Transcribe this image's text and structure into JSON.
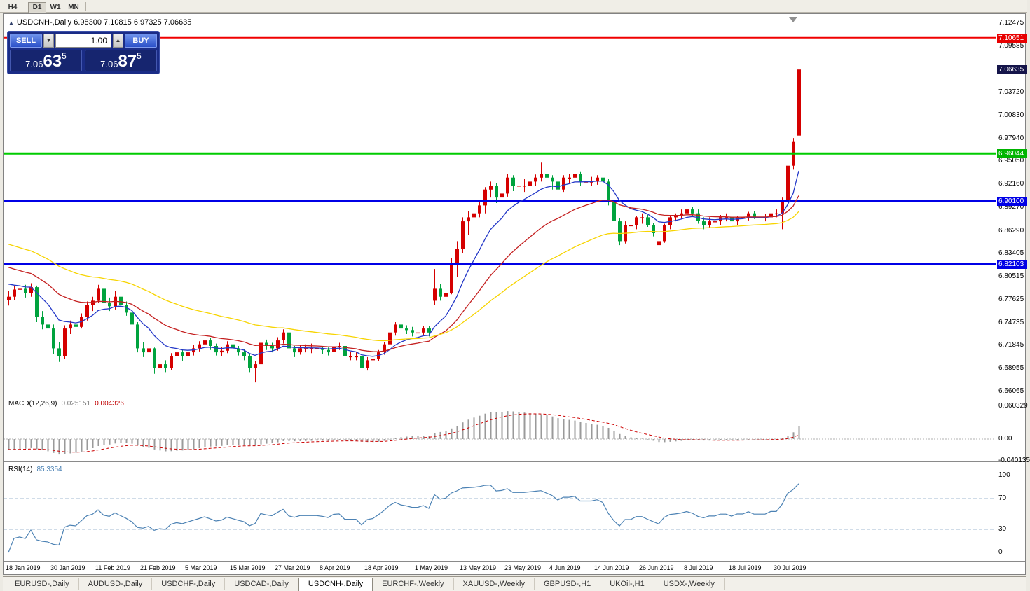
{
  "toolbar": {
    "timeframes": [
      "H4",
      "D1",
      "W1",
      "MN"
    ],
    "active": "D1"
  },
  "chart_header": {
    "collapse_icon": "▲",
    "title": "USDCNH-,Daily 6.98300 7.10815 6.97325 7.06635"
  },
  "one_click_trading": {
    "sell_label": "SELL",
    "buy_label": "BUY",
    "volume": "1.00",
    "spinner_down": "▼",
    "spinner_up": "▲",
    "sell_price": {
      "prefix": "7.06",
      "pips": "63",
      "point": "5"
    },
    "buy_price": {
      "prefix": "7.06",
      "pips": "87",
      "point": "5"
    }
  },
  "tabs": [
    {
      "label": "EURUSD-,Daily",
      "active": false
    },
    {
      "label": "AUDUSD-,Daily",
      "active": false
    },
    {
      "label": "USDCHF-,Daily",
      "active": false
    },
    {
      "label": "USDCAD-,Daily",
      "active": false
    },
    {
      "label": "USDCNH-,Daily",
      "active": true
    },
    {
      "label": "EURCHF-,Weekly",
      "active": false
    },
    {
      "label": "XAUUSD-,Weekly",
      "active": false
    },
    {
      "label": "GBPUSD-,H1",
      "active": false
    },
    {
      "label": "UKOil-,H1",
      "active": false
    },
    {
      "label": "USDX-,Weekly",
      "active": false
    }
  ],
  "chart_data": {
    "type": "candlestick",
    "symbol": "USDCNH-",
    "timeframe": "Daily",
    "last_ohlc": {
      "open": "6.98300",
      "high": "7.10815",
      "low": "6.97325",
      "close": "7.06635"
    },
    "current": {
      "bid": 7.06635,
      "ask": 7.06875
    },
    "price_axis": {
      "min": 6.66065,
      "max": 7.12475,
      "ticks": [
        "7.12475",
        "7.09585",
        "7.03720",
        "7.00830",
        "6.97940",
        "6.95050",
        "6.92160",
        "6.89270",
        "6.86290",
        "6.83405",
        "6.80515",
        "6.77625",
        "6.74735",
        "6.71845",
        "6.68955",
        "6.66065"
      ],
      "badges": [
        {
          "price": 7.10651,
          "label": "7.10651",
          "color": "#E80000"
        },
        {
          "price": 7.06635,
          "label": "7.06635",
          "color": "#15154A"
        },
        {
          "price": 6.96044,
          "label": "6.96044",
          "color": "#00B400"
        },
        {
          "price": 6.901,
          "label": "6.90100",
          "color": "#0000E6"
        },
        {
          "price": 6.82103,
          "label": "6.82103",
          "color": "#0000E6"
        }
      ]
    },
    "hlines": [
      {
        "price": 7.10651,
        "color": "#F00000",
        "width": 2
      },
      {
        "price": 6.96044,
        "color": "#00CC00",
        "width": 3
      },
      {
        "price": 6.901,
        "color": "#0000E6",
        "width": 3
      },
      {
        "price": 6.82103,
        "color": "#0000E6",
        "width": 3
      }
    ],
    "colors": {
      "up": "#D50000",
      "down": "#00A33E",
      "ma_fast": "#2438C8",
      "ma_mid": "#C42020",
      "ma_slow": "#F7D400",
      "macd_hist": "#9A9A9A",
      "macd_signal": "#CC0000",
      "rsi": "#4C82B4",
      "rsi_levels": "#A0B8D0"
    },
    "moving_averages": [
      {
        "period": 10,
        "color_key": "ma_fast"
      },
      {
        "period": 25,
        "color_key": "ma_mid"
      },
      {
        "period": 50,
        "color_key": "ma_slow"
      }
    ],
    "x_ticks": [
      {
        "label": "18 Jan 2019",
        "index": 0
      },
      {
        "label": "30 Jan 2019",
        "index": 8
      },
      {
        "label": "11 Feb 2019",
        "index": 16
      },
      {
        "label": "21 Feb 2019",
        "index": 24
      },
      {
        "label": "5 Mar 2019",
        "index": 32
      },
      {
        "label": "15 Mar 2019",
        "index": 40
      },
      {
        "label": "27 Mar 2019",
        "index": 48
      },
      {
        "label": "8 Apr 2019",
        "index": 56
      },
      {
        "label": "18 Apr 2019",
        "index": 64
      },
      {
        "label": "1 May 2019",
        "index": 73
      },
      {
        "label": "13 May 2019",
        "index": 81
      },
      {
        "label": "23 May 2019",
        "index": 89
      },
      {
        "label": "4 Jun 2019",
        "index": 97
      },
      {
        "label": "14 Jun 2019",
        "index": 105
      },
      {
        "label": "26 Jun 2019",
        "index": 113
      },
      {
        "label": "8 Jul 2019",
        "index": 121
      },
      {
        "label": "18 Jul 2019",
        "index": 129
      },
      {
        "label": "30 Jul 2019",
        "index": 137
      }
    ],
    "candles": [
      [
        6.776,
        6.787,
        6.769,
        6.78
      ],
      [
        6.78,
        6.793,
        6.776,
        6.789
      ],
      [
        6.789,
        6.799,
        6.784,
        6.79
      ],
      [
        6.79,
        6.795,
        6.779,
        6.785
      ],
      [
        6.785,
        6.797,
        6.78,
        6.792
      ],
      [
        6.792,
        6.794,
        6.748,
        6.755
      ],
      [
        6.755,
        6.762,
        6.739,
        6.745
      ],
      [
        6.745,
        6.756,
        6.738,
        6.74
      ],
      [
        6.74,
        6.745,
        6.708,
        6.715
      ],
      [
        6.715,
        6.723,
        6.698,
        6.705
      ],
      [
        6.705,
        6.744,
        6.702,
        6.74
      ],
      [
        6.74,
        6.75,
        6.733,
        6.745
      ],
      [
        6.745,
        6.749,
        6.736,
        6.742
      ],
      [
        6.742,
        6.759,
        6.74,
        6.755
      ],
      [
        6.755,
        6.774,
        6.75,
        6.77
      ],
      [
        6.77,
        6.78,
        6.762,
        6.775
      ],
      [
        6.775,
        6.795,
        6.772,
        6.79
      ],
      [
        6.79,
        6.794,
        6.768,
        6.772
      ],
      [
        6.772,
        6.779,
        6.762,
        6.768
      ],
      [
        6.768,
        6.787,
        6.764,
        6.78
      ],
      [
        6.78,
        6.784,
        6.765,
        6.77
      ],
      [
        6.77,
        6.774,
        6.756,
        6.76
      ],
      [
        6.76,
        6.764,
        6.74,
        6.745
      ],
      [
        6.745,
        6.748,
        6.71,
        6.715
      ],
      [
        6.715,
        6.723,
        6.704,
        6.71
      ],
      [
        6.71,
        6.719,
        6.703,
        6.715
      ],
      [
        6.715,
        6.716,
        6.683,
        6.69
      ],
      [
        6.69,
        6.701,
        6.682,
        6.695
      ],
      [
        6.695,
        6.7,
        6.685,
        6.69
      ],
      [
        6.69,
        6.709,
        6.688,
        6.705
      ],
      [
        6.705,
        6.713,
        6.699,
        6.71
      ],
      [
        6.71,
        6.714,
        6.699,
        6.705
      ],
      [
        6.705,
        6.713,
        6.701,
        6.71
      ],
      [
        6.71,
        6.719,
        6.706,
        6.715
      ],
      [
        6.715,
        6.724,
        6.711,
        6.72
      ],
      [
        6.72,
        6.731,
        6.714,
        6.725
      ],
      [
        6.725,
        6.728,
        6.713,
        6.718
      ],
      [
        6.718,
        6.721,
        6.706,
        6.71
      ],
      [
        6.71,
        6.717,
        6.705,
        6.712
      ],
      [
        6.712,
        6.724,
        6.709,
        6.72
      ],
      [
        6.72,
        6.723,
        6.71,
        6.715
      ],
      [
        6.715,
        6.718,
        6.706,
        6.71
      ],
      [
        6.71,
        6.714,
        6.7,
        6.705
      ],
      [
        6.705,
        6.708,
        6.685,
        6.69
      ],
      [
        6.69,
        6.699,
        6.672,
        6.695
      ],
      [
        6.695,
        6.725,
        6.692,
        6.722
      ],
      [
        6.722,
        6.726,
        6.713,
        6.718
      ],
      [
        6.718,
        6.722,
        6.71,
        6.715
      ],
      [
        6.715,
        6.729,
        6.712,
        6.725
      ],
      [
        6.725,
        6.739,
        6.721,
        6.735
      ],
      [
        6.735,
        6.738,
        6.711,
        6.715
      ],
      [
        6.715,
        6.718,
        6.704,
        6.71
      ],
      [
        6.71,
        6.719,
        6.707,
        6.715
      ],
      [
        6.715,
        6.72,
        6.71,
        6.715
      ],
      [
        6.715,
        6.721,
        6.709,
        6.715
      ],
      [
        6.715,
        6.719,
        6.711,
        6.715
      ],
      [
        6.715,
        6.718,
        6.708,
        6.713
      ],
      [
        6.713,
        6.716,
        6.706,
        6.71
      ],
      [
        6.71,
        6.72,
        6.708,
        6.717
      ],
      [
        6.717,
        6.722,
        6.713,
        6.718
      ],
      [
        6.718,
        6.721,
        6.702,
        6.705
      ],
      [
        6.705,
        6.711,
        6.7,
        6.705
      ],
      [
        6.705,
        6.71,
        6.7,
        6.705
      ],
      [
        6.705,
        6.708,
        6.686,
        6.69
      ],
      [
        6.69,
        6.704,
        6.687,
        6.7
      ],
      [
        6.7,
        6.706,
        6.696,
        6.702
      ],
      [
        6.702,
        6.713,
        6.699,
        6.71
      ],
      [
        6.71,
        6.723,
        6.707,
        6.72
      ],
      [
        6.72,
        6.738,
        6.717,
        6.735
      ],
      [
        6.735,
        6.748,
        6.731,
        6.745
      ],
      [
        6.745,
        6.749,
        6.736,
        6.74
      ],
      [
        6.74,
        6.744,
        6.733,
        6.738
      ],
      [
        6.738,
        6.742,
        6.73,
        6.735
      ],
      [
        6.735,
        6.739,
        6.73,
        6.735
      ],
      [
        6.735,
        6.743,
        6.732,
        6.74
      ],
      [
        6.74,
        6.743,
        6.73,
        6.735
      ],
      [
        6.775,
        6.815,
        6.77,
        6.79
      ],
      [
        6.79,
        6.796,
        6.775,
        6.78
      ],
      [
        6.78,
        6.79,
        6.772,
        6.785
      ],
      [
        6.785,
        6.829,
        6.783,
        6.82
      ],
      [
        6.82,
        6.85,
        6.805,
        6.84
      ],
      [
        6.84,
        6.88,
        6.835,
        6.875
      ],
      [
        6.875,
        6.888,
        6.858,
        6.88
      ],
      [
        6.88,
        6.895,
        6.87,
        6.885
      ],
      [
        6.885,
        6.9,
        6.88,
        6.895
      ],
      [
        6.895,
        6.918,
        6.885,
        6.915
      ],
      [
        6.915,
        6.925,
        6.905,
        6.92
      ],
      [
        6.92,
        6.923,
        6.898,
        6.905
      ],
      [
        6.905,
        6.915,
        6.9,
        6.91
      ],
      [
        6.91,
        6.935,
        6.906,
        6.93
      ],
      [
        6.93,
        6.933,
        6.913,
        6.92
      ],
      [
        6.92,
        6.928,
        6.915,
        6.92
      ],
      [
        6.92,
        6.928,
        6.912,
        6.92
      ],
      [
        6.92,
        6.932,
        6.917,
        6.925
      ],
      [
        6.925,
        6.934,
        6.92,
        6.93
      ],
      [
        6.93,
        6.949,
        6.925,
        6.935
      ],
      [
        6.935,
        6.94,
        6.923,
        6.93
      ],
      [
        6.93,
        6.933,
        6.915,
        6.925
      ],
      [
        6.925,
        6.93,
        6.91,
        6.915
      ],
      [
        6.915,
        6.933,
        6.912,
        6.93
      ],
      [
        6.93,
        6.935,
        6.922,
        6.93
      ],
      [
        6.93,
        6.938,
        6.925,
        6.935
      ],
      [
        6.935,
        6.938,
        6.92,
        6.925
      ],
      [
        6.925,
        6.932,
        6.919,
        6.925
      ],
      [
        6.925,
        6.931,
        6.92,
        6.925
      ],
      [
        6.925,
        6.933,
        6.921,
        6.93
      ],
      [
        6.93,
        6.932,
        6.918,
        6.925
      ],
      [
        6.925,
        6.928,
        6.895,
        6.9
      ],
      [
        6.9,
        6.905,
        6.87,
        6.875
      ],
      [
        6.875,
        6.879,
        6.845,
        6.85
      ],
      [
        6.85,
        6.875,
        6.847,
        6.87
      ],
      [
        6.87,
        6.875,
        6.862,
        6.87
      ],
      [
        6.87,
        6.882,
        6.865,
        6.88
      ],
      [
        6.88,
        6.885,
        6.872,
        6.88
      ],
      [
        6.88,
        6.883,
        6.868,
        6.87
      ],
      [
        6.87,
        6.873,
        6.856,
        6.86
      ],
      [
        6.845,
        6.852,
        6.831,
        6.85
      ],
      [
        6.85,
        6.872,
        6.848,
        6.87
      ],
      [
        6.87,
        6.883,
        6.865,
        6.88
      ],
      [
        6.88,
        6.885,
        6.875,
        6.882
      ],
      [
        6.882,
        6.89,
        6.878,
        6.885
      ],
      [
        6.885,
        6.895,
        6.882,
        6.89
      ],
      [
        6.89,
        6.893,
        6.882,
        6.885
      ],
      [
        6.885,
        6.89,
        6.872,
        6.875
      ],
      [
        6.875,
        6.88,
        6.865,
        6.87
      ],
      [
        6.87,
        6.88,
        6.867,
        6.875
      ],
      [
        6.875,
        6.88,
        6.87,
        6.875
      ],
      [
        6.875,
        6.883,
        6.87,
        6.88
      ],
      [
        6.88,
        6.885,
        6.875,
        6.88
      ],
      [
        6.88,
        6.883,
        6.868,
        6.875
      ],
      [
        6.875,
        6.882,
        6.87,
        6.88
      ],
      [
        6.88,
        6.883,
        6.874,
        6.88
      ],
      [
        6.88,
        6.887,
        6.876,
        6.885
      ],
      [
        6.885,
        6.888,
        6.878,
        6.88
      ],
      [
        6.88,
        6.885,
        6.875,
        6.88
      ],
      [
        6.88,
        6.884,
        6.875,
        6.88
      ],
      [
        6.88,
        6.887,
        6.877,
        6.885
      ],
      [
        6.885,
        6.89,
        6.88,
        6.885
      ],
      [
        6.885,
        6.905,
        6.865,
        6.9
      ],
      [
        6.9,
        6.95,
        6.893,
        6.945
      ],
      [
        6.945,
        6.98,
        6.94,
        6.975
      ],
      [
        6.983,
        7.10815,
        6.97325,
        7.06635
      ]
    ],
    "indicators": {
      "macd": {
        "name": "MACD(12,26,9)",
        "fast": 12,
        "slow": 26,
        "signal": 9,
        "value": "0.025151",
        "signal_value": "0.004326",
        "axis_labels": [
          "0.060329",
          "0.00",
          "-0.040135"
        ]
      },
      "rsi": {
        "name": "RSI(14)",
        "period": 14,
        "value": "85.3354",
        "levels": [
          70,
          30
        ],
        "axis_labels": [
          "100",
          "70",
          "30",
          "0"
        ]
      }
    }
  }
}
